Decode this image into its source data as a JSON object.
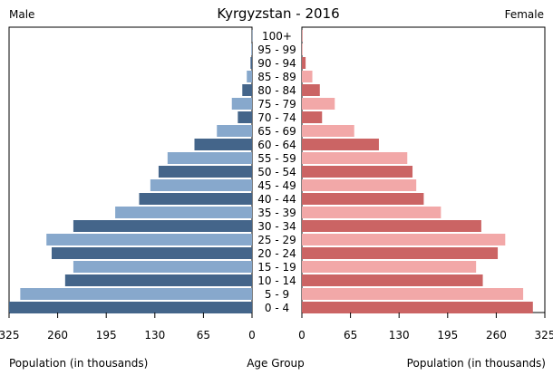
{
  "chart_data": {
    "type": "bar",
    "title": "Kyrgyzstan - 2016",
    "left_label": "Male",
    "right_label": "Female",
    "xlabel_left": "Population (in thousands)",
    "xlabel_center": "Age Group",
    "xlabel_right": "Population (in thousands)",
    "xlim": [
      0,
      325
    ],
    "ticks": [
      "325",
      "260",
      "195",
      "130",
      "65",
      "0"
    ],
    "ticks_right": [
      "0",
      "65",
      "130",
      "195",
      "260",
      "325"
    ],
    "categories": [
      "100+",
      "95 - 99",
      "90 - 94",
      "85 - 89",
      "80 - 84",
      "75 - 79",
      "70 - 74",
      "65 - 69",
      "60 - 64",
      "55 - 59",
      "50 - 54",
      "45 - 49",
      "40 - 44",
      "35 - 39",
      "30 - 34",
      "25 - 29",
      "20 - 24",
      "15 - 19",
      "10 - 14",
      "5 - 9",
      "0 - 4"
    ],
    "series": [
      {
        "name": "Male",
        "values": [
          0.2,
          1,
          2,
          7,
          13,
          27,
          19,
          47,
          77,
          113,
          125,
          136,
          151,
          183,
          239,
          275,
          268,
          239,
          250,
          310,
          325
        ]
      },
      {
        "name": "Female",
        "values": [
          0.3,
          1,
          5,
          14,
          24,
          44,
          27,
          70,
          103,
          141,
          148,
          153,
          163,
          186,
          240,
          272,
          262,
          233,
          242,
          296,
          309
        ]
      }
    ],
    "colors": {
      "male_dark": "#44658a",
      "male_light": "#87a8cc",
      "female_dark": "#cb6464",
      "female_light": "#f2a8a8"
    }
  }
}
